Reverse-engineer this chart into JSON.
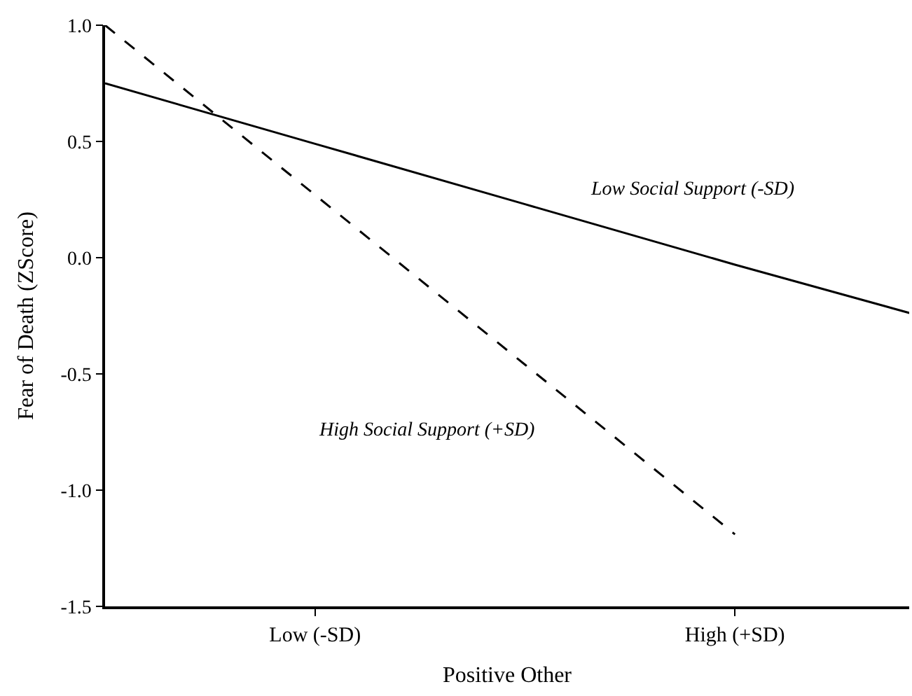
{
  "chart_data": {
    "type": "line",
    "xlabel": "Positive Other",
    "ylabel": "Fear of Death (ZScore)",
    "categories": [
      null,
      "Low (-SD)",
      null,
      "High (+SD)",
      null
    ],
    "ylim": [
      -1.5,
      1.0
    ],
    "yticks": [
      {
        "value": -1.5,
        "label": "-1.5"
      },
      {
        "value": -1.0,
        "label": "-1.0"
      },
      {
        "value": -0.5,
        "label": "-0.5"
      },
      {
        "value": 0.0,
        "label": "0.0"
      },
      {
        "value": 0.5,
        "label": "0.5"
      },
      {
        "value": 1.0,
        "label": "1.0"
      }
    ],
    "series": [
      {
        "color": "#000000",
        "line_style": "solid",
        "values": [
          0.75,
          0.49,
          0.23,
          -0.03,
          -0.28
        ]
      },
      {
        "color": "#000000",
        "line_style": "dashed",
        "values": [
          1.0,
          0.27,
          -0.46,
          -1.19,
          null
        ]
      }
    ],
    "annotations": [
      "Low Social Support (-SD)",
      "High Social Support (+SD)"
    ],
    "marker": "none"
  }
}
